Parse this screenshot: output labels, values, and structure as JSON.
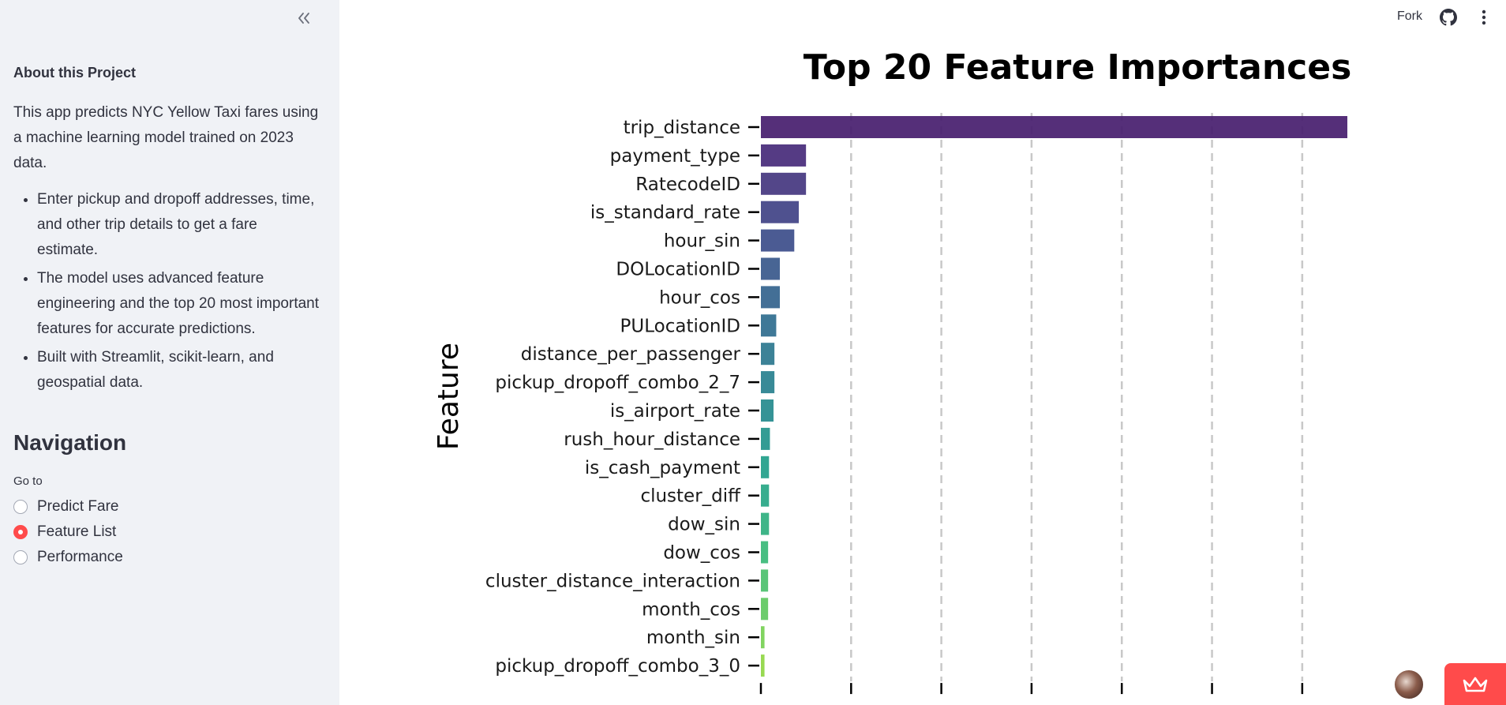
{
  "sidebar": {
    "about_title": "About this Project",
    "about_text": "This app predicts NYC Yellow Taxi fares using a machine learning model trained on 2023 data.",
    "bullets": [
      "Enter pickup and dropoff addresses, time, and other trip details to get a fare estimate.",
      "The model uses advanced feature engineering and the top 20 most important features for accurate predictions.",
      "Built with Streamlit, scikit-learn, and geospatial data."
    ],
    "nav_title": "Navigation",
    "goto_label": "Go to",
    "options": [
      "Predict Fare",
      "Feature List",
      "Performance"
    ],
    "selected_option": "Feature List",
    "collapse_icon": "double-chevron-left-icon"
  },
  "header": {
    "fork_label": "Fork",
    "github_icon": "github-icon",
    "menu_icon": "kebab-menu-icon"
  },
  "colors": {
    "accent": "#ff4b4b",
    "sidebar_bg": "#f0f2f6",
    "text": "#31333f"
  },
  "chart_data": {
    "type": "bar",
    "orientation": "horizontal",
    "title": "Top 20 Feature Importances",
    "ylabel": "Feature",
    "xlabel": "",
    "categories": [
      "trip_distance",
      "payment_type",
      "RatecodeID",
      "is_standard_rate",
      "hour_sin",
      "DOLocationID",
      "hour_cos",
      "PULocationID",
      "distance_per_passenger",
      "pickup_dropoff_combo_2_7",
      "is_airport_rate",
      "rush_hour_distance",
      "is_cash_payment",
      "cluster_diff",
      "dow_sin",
      "dow_cos",
      "cluster_distance_interaction",
      "month_cos",
      "month_sin",
      "pickup_dropoff_combo_3_0"
    ],
    "values": [
      0.65,
      0.05,
      0.05,
      0.042,
      0.037,
      0.021,
      0.021,
      0.017,
      0.015,
      0.015,
      0.014,
      0.01,
      0.009,
      0.009,
      0.009,
      0.008,
      0.008,
      0.008,
      0.004,
      0.004
    ],
    "xlim": [
      0,
      0.65
    ],
    "xticks": [
      0,
      0.1,
      0.2,
      0.3,
      0.4,
      0.5,
      0.6
    ],
    "grid": "x-dashed",
    "palette": "viridis"
  }
}
